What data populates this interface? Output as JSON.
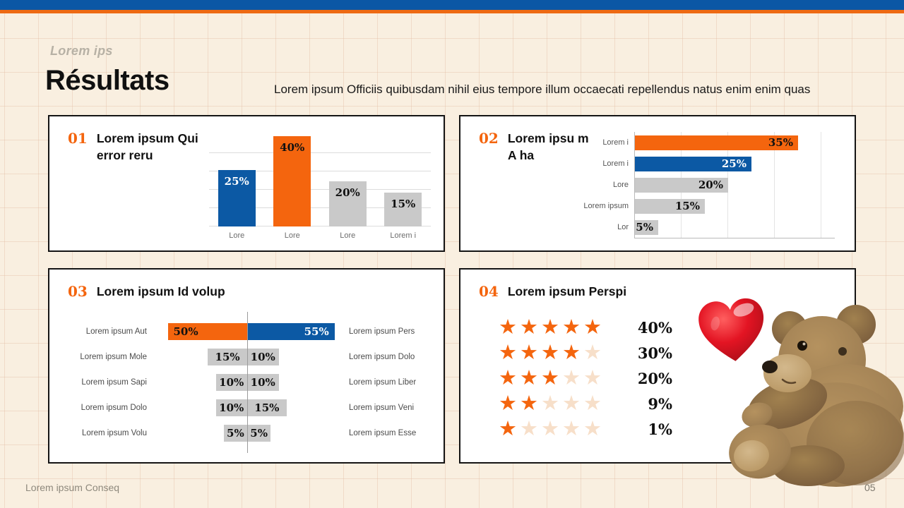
{
  "slide": {
    "kicker": "Lorem ips",
    "title": "Résultats",
    "description": "Lorem ipsum Officiis quibusdam nihil eius tempore illum occaecati repellendus natus enim enim quas",
    "footer_left": "Lorem ipsum Conseq",
    "page_number": "05"
  },
  "colors": {
    "top_bar_blue": "#0B57A5",
    "top_stripe_orange": "#EE6A12",
    "accent_orange": "#F4650E",
    "accent_blue": "#0C59A4",
    "bar_gray": "#C9C9C9",
    "panel_background": "#FFFFFF",
    "slide_background": "#F9EFE0",
    "star_filled": "#F4650E",
    "star_empty": "#F7DFC9"
  },
  "chart_data": [
    {
      "type": "bar",
      "number": "01",
      "title": "Lorem ipsum Qui error reru",
      "categories": [
        "Lore",
        "Lore",
        "Lore",
        "Lorem i"
      ],
      "values": [
        25,
        40,
        20,
        15
      ],
      "labels": [
        "25%",
        "40%",
        "20%",
        "15%"
      ],
      "bar_colors": [
        "#0C59A4",
        "#F4650E",
        "#C9C9C9",
        "#C9C9C9"
      ],
      "label_colors": [
        "#FFFFFF",
        "#111111",
        "#111111",
        "#111111"
      ],
      "ylim": [
        0,
        45
      ],
      "grid": "horizontal"
    },
    {
      "type": "bar-horizontal",
      "number": "02",
      "title": "Lorem ipsu m A ha",
      "categories": [
        "Lorem i",
        "Lorem i",
        "Lore",
        "Lorem ipsum",
        "Lor"
      ],
      "values": [
        35,
        25,
        20,
        15,
        5
      ],
      "labels": [
        "35%",
        "25%",
        "20%",
        "15%",
        "5%"
      ],
      "bar_colors": [
        "#F4650E",
        "#0C59A4",
        "#C9C9C9",
        "#C9C9C9",
        "#C9C9C9"
      ],
      "label_colors": [
        "#111111",
        "#FFFFFF",
        "#111111",
        "#111111",
        "#111111"
      ],
      "xlim": [
        0,
        40
      ],
      "grid": "vertical"
    },
    {
      "type": "bar-butterfly",
      "number": "03",
      "title": "Lorem ipsum Id volup",
      "rows": [
        {
          "left_label": "Lorem ipsum Aut",
          "left_value": 50,
          "left_text": "50%",
          "left_color": "#F4650E",
          "left_text_color": "#111111",
          "right_value": 55,
          "right_text": "55%",
          "right_color": "#0C59A4",
          "right_text_color": "#FFFFFF",
          "right_label": "Lorem ipsum Pers"
        },
        {
          "left_label": "Lorem ipsum Mole",
          "left_value": 15,
          "left_text": "15%",
          "left_color": "#C9C9C9",
          "left_text_color": "#111111",
          "right_value": 10,
          "right_text": "10%",
          "right_color": "#C9C9C9",
          "right_text_color": "#111111",
          "right_label": "Lorem ipsum Dolo"
        },
        {
          "left_label": "Lorem ipsum Sapi",
          "left_value": 10,
          "left_text": "10%",
          "left_color": "#C9C9C9",
          "left_text_color": "#111111",
          "right_value": 10,
          "right_text": "10%",
          "right_color": "#C9C9C9",
          "right_text_color": "#111111",
          "right_label": "Lorem ipsum Liber"
        },
        {
          "left_label": "Lorem ipsum Dolo",
          "left_value": 10,
          "left_text": "10%",
          "left_color": "#C9C9C9",
          "left_text_color": "#111111",
          "right_value": 15,
          "right_text": "15%",
          "right_color": "#C9C9C9",
          "right_text_color": "#111111",
          "right_label": "Lorem ipsum Veni"
        },
        {
          "left_label": "Lorem ipsum Volu",
          "left_value": 5,
          "left_text": "5%",
          "left_color": "#C9C9C9",
          "left_text_color": "#111111",
          "right_value": 5,
          "right_text": "5%",
          "right_color": "#C9C9C9",
          "right_text_color": "#111111",
          "right_label": "Lorem ipsum Esse"
        }
      ]
    },
    {
      "type": "rating",
      "number": "04",
      "title": "Lorem ipsum Perspi",
      "max_stars": 5,
      "rows": [
        {
          "stars": 5,
          "label": "40%"
        },
        {
          "stars": 4,
          "label": "30%"
        },
        {
          "stars": 3,
          "label": "20%"
        },
        {
          "stars": 2,
          "label": "9%"
        },
        {
          "stars": 1,
          "label": "1%"
        }
      ],
      "star_filled_color": "#F4650E",
      "star_empty_color": "#F7DFC9"
    }
  ],
  "decor": {
    "heart": "red-heart-image",
    "teddy_bear": "teddy-bear-image"
  }
}
